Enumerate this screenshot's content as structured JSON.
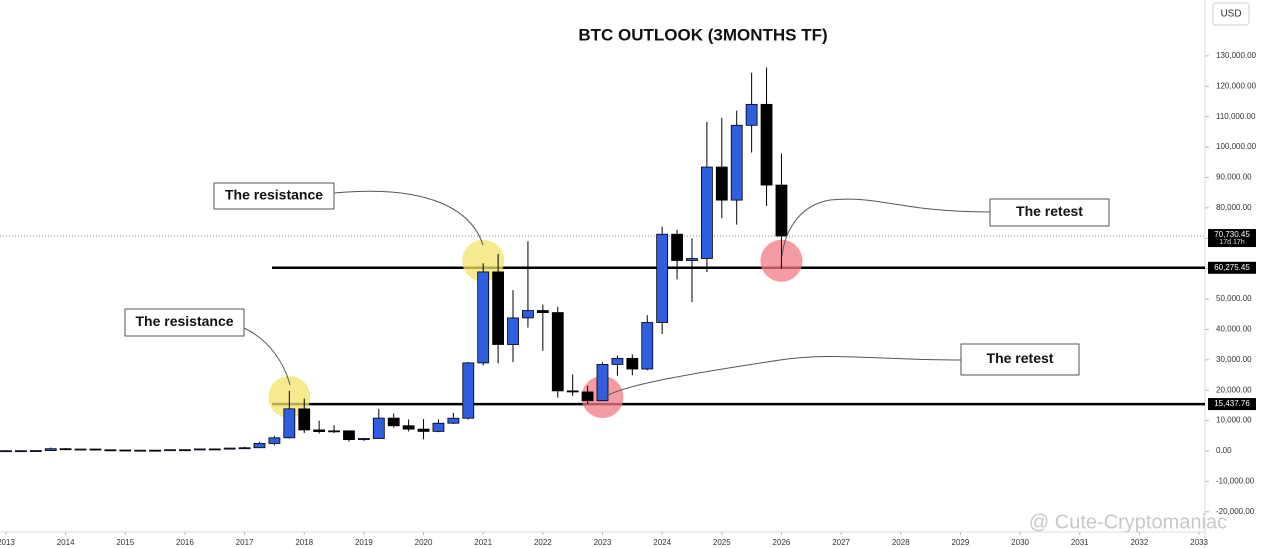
{
  "chart_data": {
    "type": "candlestick",
    "title": "BTC OUTLOOK (3MONTHS TF)",
    "currency": "USD",
    "watermark": "@ Cute-Cryptomaniac",
    "up_color": "#2f5fe0",
    "down_color": "#000000",
    "x": [
      2013,
      2013.25,
      2013.5,
      2013.75,
      2014,
      2014.25,
      2014.5,
      2014.75,
      2015,
      2015.25,
      2015.5,
      2015.75,
      2016,
      2016.25,
      2016.5,
      2016.75,
      2017,
      2017.25,
      2017.5,
      2017.75,
      2018,
      2018.25,
      2018.5,
      2018.75,
      2019,
      2019.25,
      2019.5,
      2019.75,
      2020,
      2020.25,
      2020.5,
      2020.75,
      2021,
      2021.25,
      2021.5,
      2021.75,
      2022,
      2022.25,
      2022.5,
      2022.75,
      2023,
      2023.25,
      2023.5,
      2023.75,
      2024,
      2024.25,
      2024.5,
      2024.75,
      2025,
      2025.25,
      2025.5,
      2025.75,
      2026
    ],
    "open": [
      13,
      93,
      97,
      128,
      750,
      460,
      640,
      390,
      320,
      245,
      263,
      236,
      430,
      416,
      673,
      610,
      960,
      1070,
      2480,
      4340,
      13860,
      6930,
      6390,
      6630,
      3740,
      4100,
      10820,
      8300,
      7190,
      6440,
      9140,
      10780,
      28990,
      58920,
      35040,
      43790,
      46220,
      45540,
      19780,
      19430,
      16540,
      28480,
      30470,
      26970,
      42280,
      71330,
      62680,
      63330,
      93430,
      82550,
      107170,
      114060,
      87500
    ],
    "high": [
      266,
      266,
      140,
      1150,
      1000,
      680,
      660,
      450,
      320,
      265,
      315,
      500,
      460,
      780,
      700,
      980,
      1350,
      2980,
      4980,
      19800,
      17250,
      9990,
      8500,
      6800,
      4300,
      13880,
      12330,
      10370,
      10500,
      10430,
      12480,
      29300,
      61800,
      64860,
      52920,
      69000,
      48200,
      47440,
      25200,
      21480,
      29190,
      31430,
      31800,
      44700,
      73800,
      72800,
      70000,
      108300,
      109600,
      111980,
      124450,
      126200,
      97900
    ],
    "low": [
      13,
      65,
      63,
      120,
      430,
      340,
      370,
      275,
      170,
      215,
      200,
      235,
      350,
      415,
      470,
      600,
      750,
      1000,
      1830,
      4100,
      5900,
      5780,
      5880,
      3120,
      3350,
      4050,
      7700,
      6420,
      3850,
      6150,
      8900,
      10370,
      28130,
      28800,
      29280,
      40600,
      32950,
      17570,
      18150,
      15480,
      16490,
      24750,
      24900,
      26540,
      38500,
      56500,
      49000,
      58870,
      76600,
      74500,
      98200,
      80600,
      60000
    ],
    "close": [
      93,
      97,
      128,
      750,
      460,
      640,
      390,
      320,
      245,
      263,
      236,
      430,
      416,
      673,
      610,
      960,
      1070,
      2480,
      4340,
      13860,
      6930,
      6390,
      6630,
      3740,
      4100,
      10820,
      8300,
      7190,
      6440,
      9140,
      10780,
      28990,
      58920,
      35040,
      43790,
      46220,
      45540,
      19780,
      19430,
      16540,
      28480,
      30470,
      26970,
      42280,
      71330,
      62680,
      63330,
      93430,
      82550,
      107170,
      114060,
      87500,
      70730.45
    ],
    "xlim": [
      2012.9,
      2033.1
    ],
    "ylim": [
      -26000,
      148400
    ],
    "xticks": [
      2013,
      2014,
      2015,
      2016,
      2017,
      2018,
      2019,
      2020,
      2021,
      2022,
      2023,
      2024,
      2025,
      2026,
      2027,
      2028,
      2029,
      2030,
      2031,
      2032,
      2033
    ],
    "yticks": [
      {
        "value": 130000,
        "label": "130,000.00"
      },
      {
        "value": 120000,
        "label": "120,000.00"
      },
      {
        "value": 110000,
        "label": "110,000.00"
      },
      {
        "value": 100000,
        "label": "100,000.00"
      },
      {
        "value": 90000,
        "label": "90,000.00"
      },
      {
        "value": 80000,
        "label": "80,000.00"
      },
      {
        "value": 70000,
        "label": "70,000.00"
      },
      {
        "value": 60000,
        "label": "60,000.00"
      },
      {
        "value": 50000,
        "label": "50,000.00"
      },
      {
        "value": 40000,
        "label": "40,000.00"
      },
      {
        "value": 30000,
        "label": "30,000.00"
      },
      {
        "value": 20000,
        "label": "20,000.00"
      },
      {
        "value": 10000,
        "label": "10,000.00"
      },
      {
        "value": 0,
        "label": "0.00"
      },
      {
        "value": -10000,
        "label": "-10,000.00"
      },
      {
        "value": -20000,
        "label": "-20,000.00"
      }
    ],
    "last_price": {
      "value": 70730.45,
      "label": "70,730.45",
      "countdown": "17d 17h"
    },
    "levels": [
      {
        "value": 60275.45,
        "label": "60,275.45"
      },
      {
        "value": 15437.76,
        "label": "15,437.76"
      }
    ],
    "highlights": [
      {
        "x": 2021,
        "y": 60275.45,
        "color": "#f3e36a"
      },
      {
        "x": 2017.75,
        "y": 15437.76,
        "color": "#f3e36a"
      },
      {
        "x": 2026,
        "y": 60275.45,
        "color": "#f07a86"
      },
      {
        "x": 2023,
        "y": 15437.76,
        "color": "#f07a86"
      }
    ],
    "annotations": [
      "The resistance",
      "The resistance",
      "The retest",
      "The retest"
    ]
  }
}
